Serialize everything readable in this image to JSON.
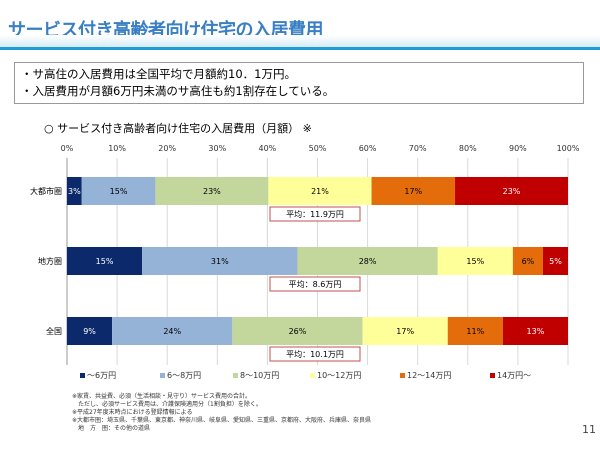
{
  "header": {
    "title": "サービス付き高齢者向け住宅の入居費用"
  },
  "summary": [
    "・サ高住の入居費用は全国平均で月額約10．1万円。",
    "・入居費用が月額6万円未満のサ高住も約1割存在している。"
  ],
  "subtitle": "○ サービス付き高齢者向け住宅の入居費用（月額） ※",
  "chart_data": {
    "type": "bar",
    "orientation": "horizontal-stacked-100",
    "xlim": [
      0,
      100
    ],
    "ticks": [
      "0%",
      "10%",
      "20%",
      "30%",
      "40%",
      "50%",
      "60%",
      "70%",
      "80%",
      "90%",
      "100%"
    ],
    "categories": [
      "大都市圏",
      "地方圏",
      "全国"
    ],
    "series": [
      {
        "name": "～6万円",
        "color": "#0c2a6b",
        "values": [
          3,
          15,
          9
        ]
      },
      {
        "name": "6～8万円",
        "color": "#95b3d7",
        "values": [
          15,
          31,
          24
        ]
      },
      {
        "name": "8～10万円",
        "color": "#c3d69b",
        "values": [
          23,
          28,
          26
        ]
      },
      {
        "name": "10～12万円",
        "color": "#ffff99",
        "values": [
          21,
          15,
          17
        ]
      },
      {
        "name": "12～14万円",
        "color": "#e46c0a",
        "values": [
          17,
          6,
          11
        ]
      },
      {
        "name": "14万円～",
        "color": "#c00000",
        "values": [
          23,
          5,
          13
        ]
      }
    ],
    "averages": [
      "平均：11.9万円",
      "平均：8.6万円",
      "平均：10.1万円"
    ],
    "grid": true,
    "legend": "bottom"
  },
  "notes": [
    "※家賃、共益費、必須（生活相談・見守り）サービス費用の合計。",
    "　ただし、必須サービス費用は、介護保険適用分（1割負担）を除く。",
    "※平成27年度末時点における登録情報による",
    "※大都市圏：埼玉県、千葉県、東京都、神奈川県、岐阜県、愛知県、三重県、京都府、大阪府、兵庫県、奈良県",
    "　地　方　圏：その他の道県"
  ],
  "page_number": "11"
}
